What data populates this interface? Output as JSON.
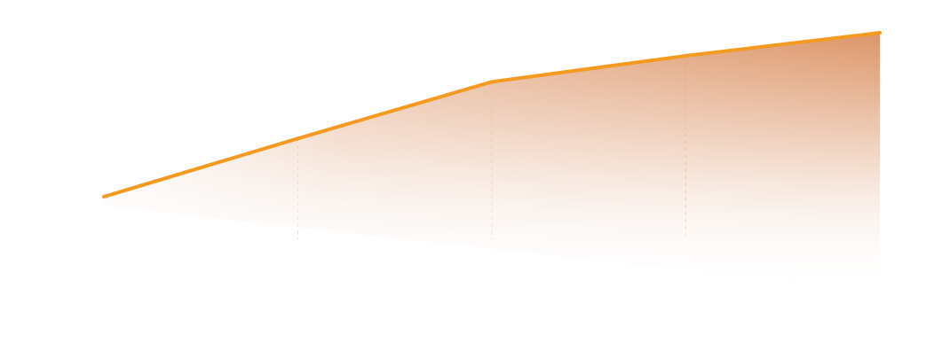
{
  "chart_data": {
    "type": "area",
    "title": "",
    "xlabel": "",
    "ylabel": "",
    "x": [
      1,
      2,
      3,
      4,
      5
    ],
    "series": [
      {
        "values": [
          0.0,
          0.38,
          0.75,
          0.92,
          1.07
        ]
      }
    ],
    "xlim": [
      1,
      5
    ],
    "ylim": [
      0,
      1.07
    ],
    "grid": false,
    "legend": "none",
    "colors": {
      "line": "#f39a1f",
      "fill_top": "#d98a58",
      "fill_bottom": "#ffffff",
      "guide": "#f2d7c7"
    }
  }
}
